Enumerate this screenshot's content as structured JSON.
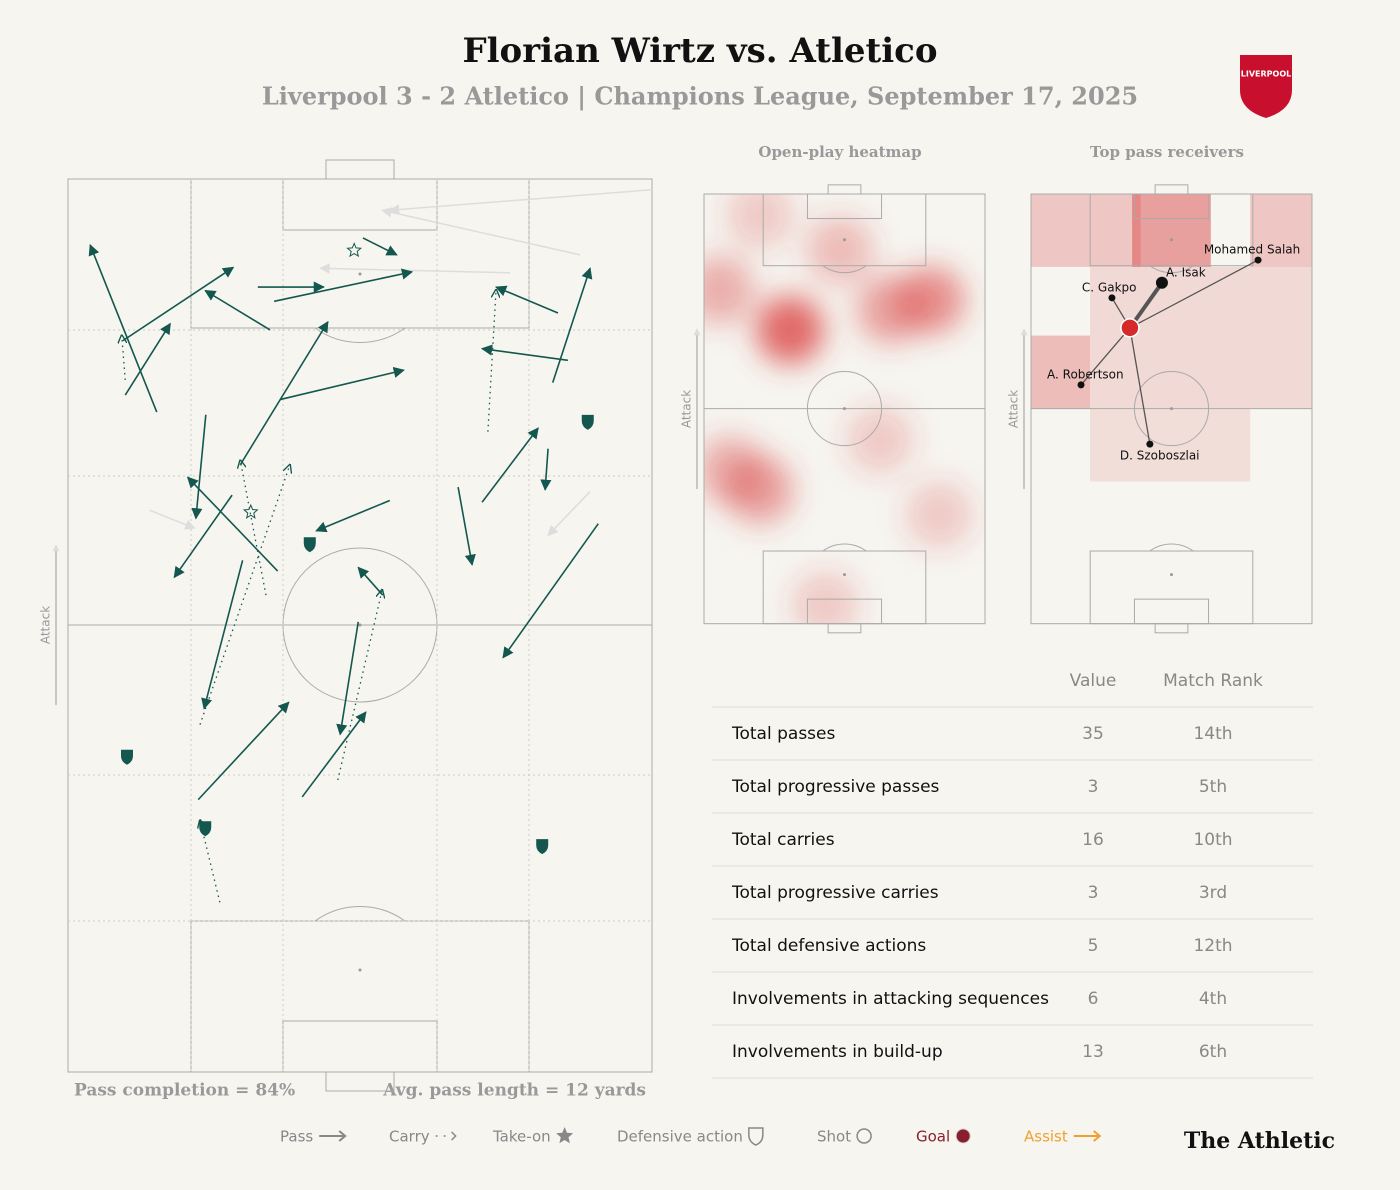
{
  "header": {
    "title": "Florian Wirtz vs. Atletico",
    "subtitle": "Liverpool 3 - 2 Atletico | Champions League, September 17, 2025",
    "crest": "LIVERPOOL"
  },
  "pitch": {
    "direction": "Attack",
    "footer_left": "Pass completion = 84%",
    "footer_right": "Avg. pass length = 12 yards",
    "passes": [
      {
        "x1": 15.2,
        "y1": 26.1,
        "x2": 3.8,
        "y2": 7.4
      },
      {
        "x1": 9.4,
        "y1": 18.1,
        "x2": 28.3,
        "y2": 9.9
      },
      {
        "x1": 9.8,
        "y1": 24.2,
        "x2": 17.5,
        "y2": 16.2
      },
      {
        "x1": 34.6,
        "y1": 16.9,
        "x2": 23.5,
        "y2": 12.5
      },
      {
        "x1": 32.5,
        "y1": 12.1,
        "x2": 43.8,
        "y2": 12.1
      },
      {
        "x1": 35.3,
        "y1": 13.7,
        "x2": 58.9,
        "y2": 10.4
      },
      {
        "x1": 50.5,
        "y1": 6.6,
        "x2": 56.3,
        "y2": 8.5
      },
      {
        "x1": 83.9,
        "y1": 15,
        "x2": 73.3,
        "y2": 12.1
      },
      {
        "x1": 83,
        "y1": 22.8,
        "x2": 89.4,
        "y2": 10
      },
      {
        "x1": 85.6,
        "y1": 20.3,
        "x2": 70.9,
        "y2": 19
      },
      {
        "x1": 36.3,
        "y1": 24.7,
        "x2": 57.5,
        "y2": 21.4
      },
      {
        "x1": 29.5,
        "y1": 32,
        "x2": 44.5,
        "y2": 16
      },
      {
        "x1": 23.6,
        "y1": 26.4,
        "x2": 21.9,
        "y2": 38
      },
      {
        "x1": 35.9,
        "y1": 43.9,
        "x2": 20.5,
        "y2": 33.4
      },
      {
        "x1": 28.1,
        "y1": 35.4,
        "x2": 18.2,
        "y2": 44.6
      },
      {
        "x1": 55.1,
        "y1": 36,
        "x2": 42.5,
        "y2": 39.4
      },
      {
        "x1": 70.9,
        "y1": 36.2,
        "x2": 80.5,
        "y2": 27.9
      },
      {
        "x1": 82.2,
        "y1": 30.2,
        "x2": 81.7,
        "y2": 34.8
      },
      {
        "x1": 66.8,
        "y1": 34.5,
        "x2": 69.2,
        "y2": 43.2
      },
      {
        "x1": 90.8,
        "y1": 38.6,
        "x2": 74.5,
        "y2": 53.6
      },
      {
        "x1": 29.9,
        "y1": 42.7,
        "x2": 23.3,
        "y2": 59.3
      },
      {
        "x1": 49.7,
        "y1": 49.6,
        "x2": 46.6,
        "y2": 62.2
      },
      {
        "x1": 40.1,
        "y1": 69.2,
        "x2": 51,
        "y2": 59.7
      },
      {
        "x1": 22.3,
        "y1": 69.5,
        "x2": 37.8,
        "y2": 58.6
      },
      {
        "x1": 53.9,
        "y1": 46.6,
        "x2": 49.7,
        "y2": 43.5
      }
    ],
    "failed_passes": [
      {
        "x1": 100,
        "y1": 1.2,
        "x2": 55.1,
        "y2": 3.5
      },
      {
        "x1": 87.7,
        "y1": 8.5,
        "x2": 53.8,
        "y2": 3.5
      },
      {
        "x1": 75.7,
        "y1": 10.5,
        "x2": 43.2,
        "y2": 10
      },
      {
        "x1": 14,
        "y1": 37.1,
        "x2": 21.7,
        "y2": 39.1
      },
      {
        "x1": 89.4,
        "y1": 35,
        "x2": 82.2,
        "y2": 39.9
      }
    ],
    "carries": [
      {
        "x1": 26,
        "y1": 81,
        "x2": 22.6,
        "y2": 71.8
      },
      {
        "x1": 46.2,
        "y1": 67.3,
        "x2": 53.8,
        "y2": 46
      },
      {
        "x1": 22.6,
        "y1": 61.1,
        "x2": 38,
        "y2": 32
      },
      {
        "x1": 71.9,
        "y1": 28.3,
        "x2": 73.3,
        "y2": 12.4
      },
      {
        "x1": 9.8,
        "y1": 22.5,
        "x2": 9.2,
        "y2": 17.5
      },
      {
        "x1": 33.9,
        "y1": 46.6,
        "x2": 29.5,
        "y2": 31.5
      }
    ],
    "defensive_actions": [
      {
        "x": 89,
        "y": 27.2
      },
      {
        "x": 41.4,
        "y": 40.9
      },
      {
        "x": 10.1,
        "y": 64.7
      },
      {
        "x": 23.5,
        "y": 72.7
      },
      {
        "x": 81.2,
        "y": 74.7
      }
    ],
    "take_ons": [
      {
        "x": 49,
        "y": 8
      },
      {
        "x": 31.3,
        "y": 37.3
      }
    ]
  },
  "heatmap": {
    "title": "Open-play heatmap",
    "direction": "Attack",
    "blobs": [
      {
        "x": 30.6,
        "y": 31.7,
        "v": 1
      },
      {
        "x": 80.8,
        "y": 24.7,
        "v": 0.7
      },
      {
        "x": 66.5,
        "y": 27,
        "v": 0.6
      },
      {
        "x": 5.7,
        "y": 22.4,
        "v": 0.5
      },
      {
        "x": 48.4,
        "y": 13.1,
        "v": 0.4
      },
      {
        "x": 19.9,
        "y": 69,
        "v": 0.6
      },
      {
        "x": 9.3,
        "y": 64.3,
        "v": 0.5
      },
      {
        "x": 62.6,
        "y": 57.3,
        "v": 0.3
      },
      {
        "x": 83.6,
        "y": 74.8,
        "v": 0.3
      },
      {
        "x": 43.1,
        "y": 95.8,
        "v": 0.3
      },
      {
        "x": 19.9,
        "y": 4.9,
        "v": 0.3
      }
    ]
  },
  "receivers": {
    "title": "Top pass receivers",
    "direction": "Attack",
    "origin": {
      "x": 35.2,
      "y": 31.2
    },
    "players": [
      {
        "name": "A. Isak",
        "x": 46.6,
        "y": 20.7
      },
      {
        "name": "Mohamed Salah",
        "x": 80.8,
        "y": 15.4
      },
      {
        "name": "C. Gakpo",
        "x": 28.8,
        "y": 24.2
      },
      {
        "name": "A. Robertson",
        "x": 17.8,
        "y": 44.5
      },
      {
        "name": "D. Szoboszlai",
        "x": 42.3,
        "y": 58.3
      }
    ]
  },
  "table": {
    "columns": [
      "Value",
      "Match Rank"
    ],
    "rows": [
      [
        "Total passes",
        35,
        "14th"
      ],
      [
        "Total progressive passes",
        3,
        "5th"
      ],
      [
        "Total carries",
        16,
        "10th"
      ],
      [
        "Total progressive carries",
        3,
        "3rd"
      ],
      [
        "Total defensive actions",
        5,
        "12th"
      ],
      [
        "Involvements in attacking sequences",
        6,
        "4th"
      ],
      [
        "Involvements in build-up",
        13,
        "6th"
      ]
    ]
  },
  "legend": [
    "Pass",
    "Carry",
    "Take-on",
    "Defensive action",
    "Shot",
    "Goal",
    "Assist"
  ],
  "brand": "The Athletic"
}
